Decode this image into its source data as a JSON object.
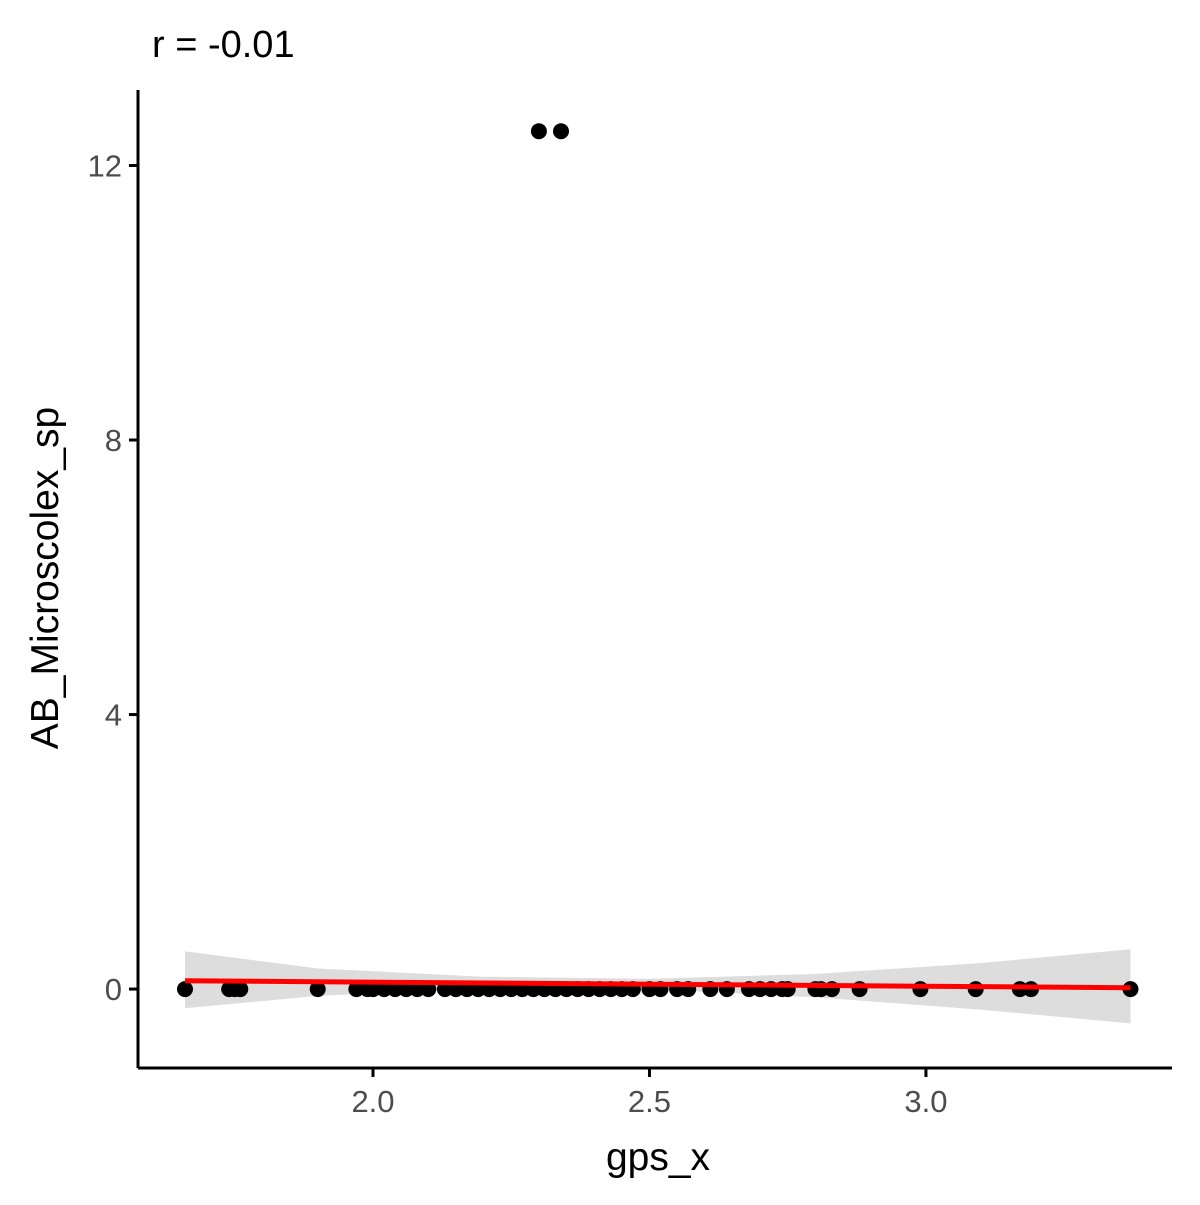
{
  "chart_data": {
    "type": "scatter",
    "title": "r = -0.01",
    "xlabel": "gps_x",
    "ylabel": "AB_Microscolex_sp",
    "xlim": [
      1.575,
      3.445
    ],
    "ylim": [
      -1.15,
      13.1
    ],
    "xticks": [
      2.0,
      2.5,
      3.0
    ],
    "xtick_labels": [
      "2.0",
      "2.5",
      "3.0"
    ],
    "yticks": [
      0,
      4,
      8,
      12
    ],
    "ytick_labels": [
      "0",
      "4",
      "8",
      "12"
    ],
    "grid": false,
    "legend": "none",
    "colors": {
      "points": "#000000",
      "fit_line": "#ff0000",
      "confidence_band": "#d9d9d9",
      "axis": "#000000",
      "tick_label": "#4d4d4d"
    },
    "points": [
      {
        "x": 1.66,
        "y": 0
      },
      {
        "x": 1.74,
        "y": 0
      },
      {
        "x": 1.75,
        "y": 0
      },
      {
        "x": 1.76,
        "y": 0
      },
      {
        "x": 1.9,
        "y": 0
      },
      {
        "x": 1.97,
        "y": 0
      },
      {
        "x": 1.99,
        "y": 0
      },
      {
        "x": 2.0,
        "y": 0
      },
      {
        "x": 2.02,
        "y": 0
      },
      {
        "x": 2.04,
        "y": 0
      },
      {
        "x": 2.06,
        "y": 0
      },
      {
        "x": 2.08,
        "y": 0
      },
      {
        "x": 2.1,
        "y": 0
      },
      {
        "x": 2.13,
        "y": 0
      },
      {
        "x": 2.15,
        "y": 0
      },
      {
        "x": 2.17,
        "y": 0
      },
      {
        "x": 2.19,
        "y": 0
      },
      {
        "x": 2.21,
        "y": 0
      },
      {
        "x": 2.23,
        "y": 0
      },
      {
        "x": 2.25,
        "y": 0
      },
      {
        "x": 2.27,
        "y": 0
      },
      {
        "x": 2.29,
        "y": 0
      },
      {
        "x": 2.31,
        "y": 0
      },
      {
        "x": 2.33,
        "y": 0
      },
      {
        "x": 2.35,
        "y": 0
      },
      {
        "x": 2.37,
        "y": 0
      },
      {
        "x": 2.39,
        "y": 0
      },
      {
        "x": 2.41,
        "y": 0
      },
      {
        "x": 2.43,
        "y": 0
      },
      {
        "x": 2.45,
        "y": 0
      },
      {
        "x": 2.47,
        "y": 0
      },
      {
        "x": 2.5,
        "y": 0
      },
      {
        "x": 2.52,
        "y": 0
      },
      {
        "x": 2.55,
        "y": 0
      },
      {
        "x": 2.57,
        "y": 0
      },
      {
        "x": 2.61,
        "y": 0
      },
      {
        "x": 2.64,
        "y": 0
      },
      {
        "x": 2.68,
        "y": 0
      },
      {
        "x": 2.7,
        "y": 0
      },
      {
        "x": 2.72,
        "y": 0
      },
      {
        "x": 2.74,
        "y": 0
      },
      {
        "x": 2.75,
        "y": 0
      },
      {
        "x": 2.8,
        "y": 0
      },
      {
        "x": 2.81,
        "y": 0
      },
      {
        "x": 2.83,
        "y": 0
      },
      {
        "x": 2.88,
        "y": 0
      },
      {
        "x": 2.99,
        "y": 0
      },
      {
        "x": 3.09,
        "y": 0
      },
      {
        "x": 3.17,
        "y": 0
      },
      {
        "x": 3.19,
        "y": 0
      },
      {
        "x": 3.37,
        "y": 0
      },
      {
        "x": 2.3,
        "y": 12.5
      },
      {
        "x": 2.34,
        "y": 12.5
      }
    ],
    "fit_line": {
      "x": [
        1.66,
        3.37
      ],
      "y": [
        0.12,
        0.02
      ]
    },
    "confidence_band": {
      "x": [
        1.66,
        1.9,
        2.2,
        2.5,
        2.8,
        3.1,
        3.37
      ],
      "upper": [
        0.55,
        0.3,
        0.18,
        0.15,
        0.22,
        0.38,
        0.58
      ],
      "lower": [
        -0.28,
        -0.1,
        0.02,
        0.0,
        -0.12,
        -0.3,
        -0.5
      ]
    }
  }
}
